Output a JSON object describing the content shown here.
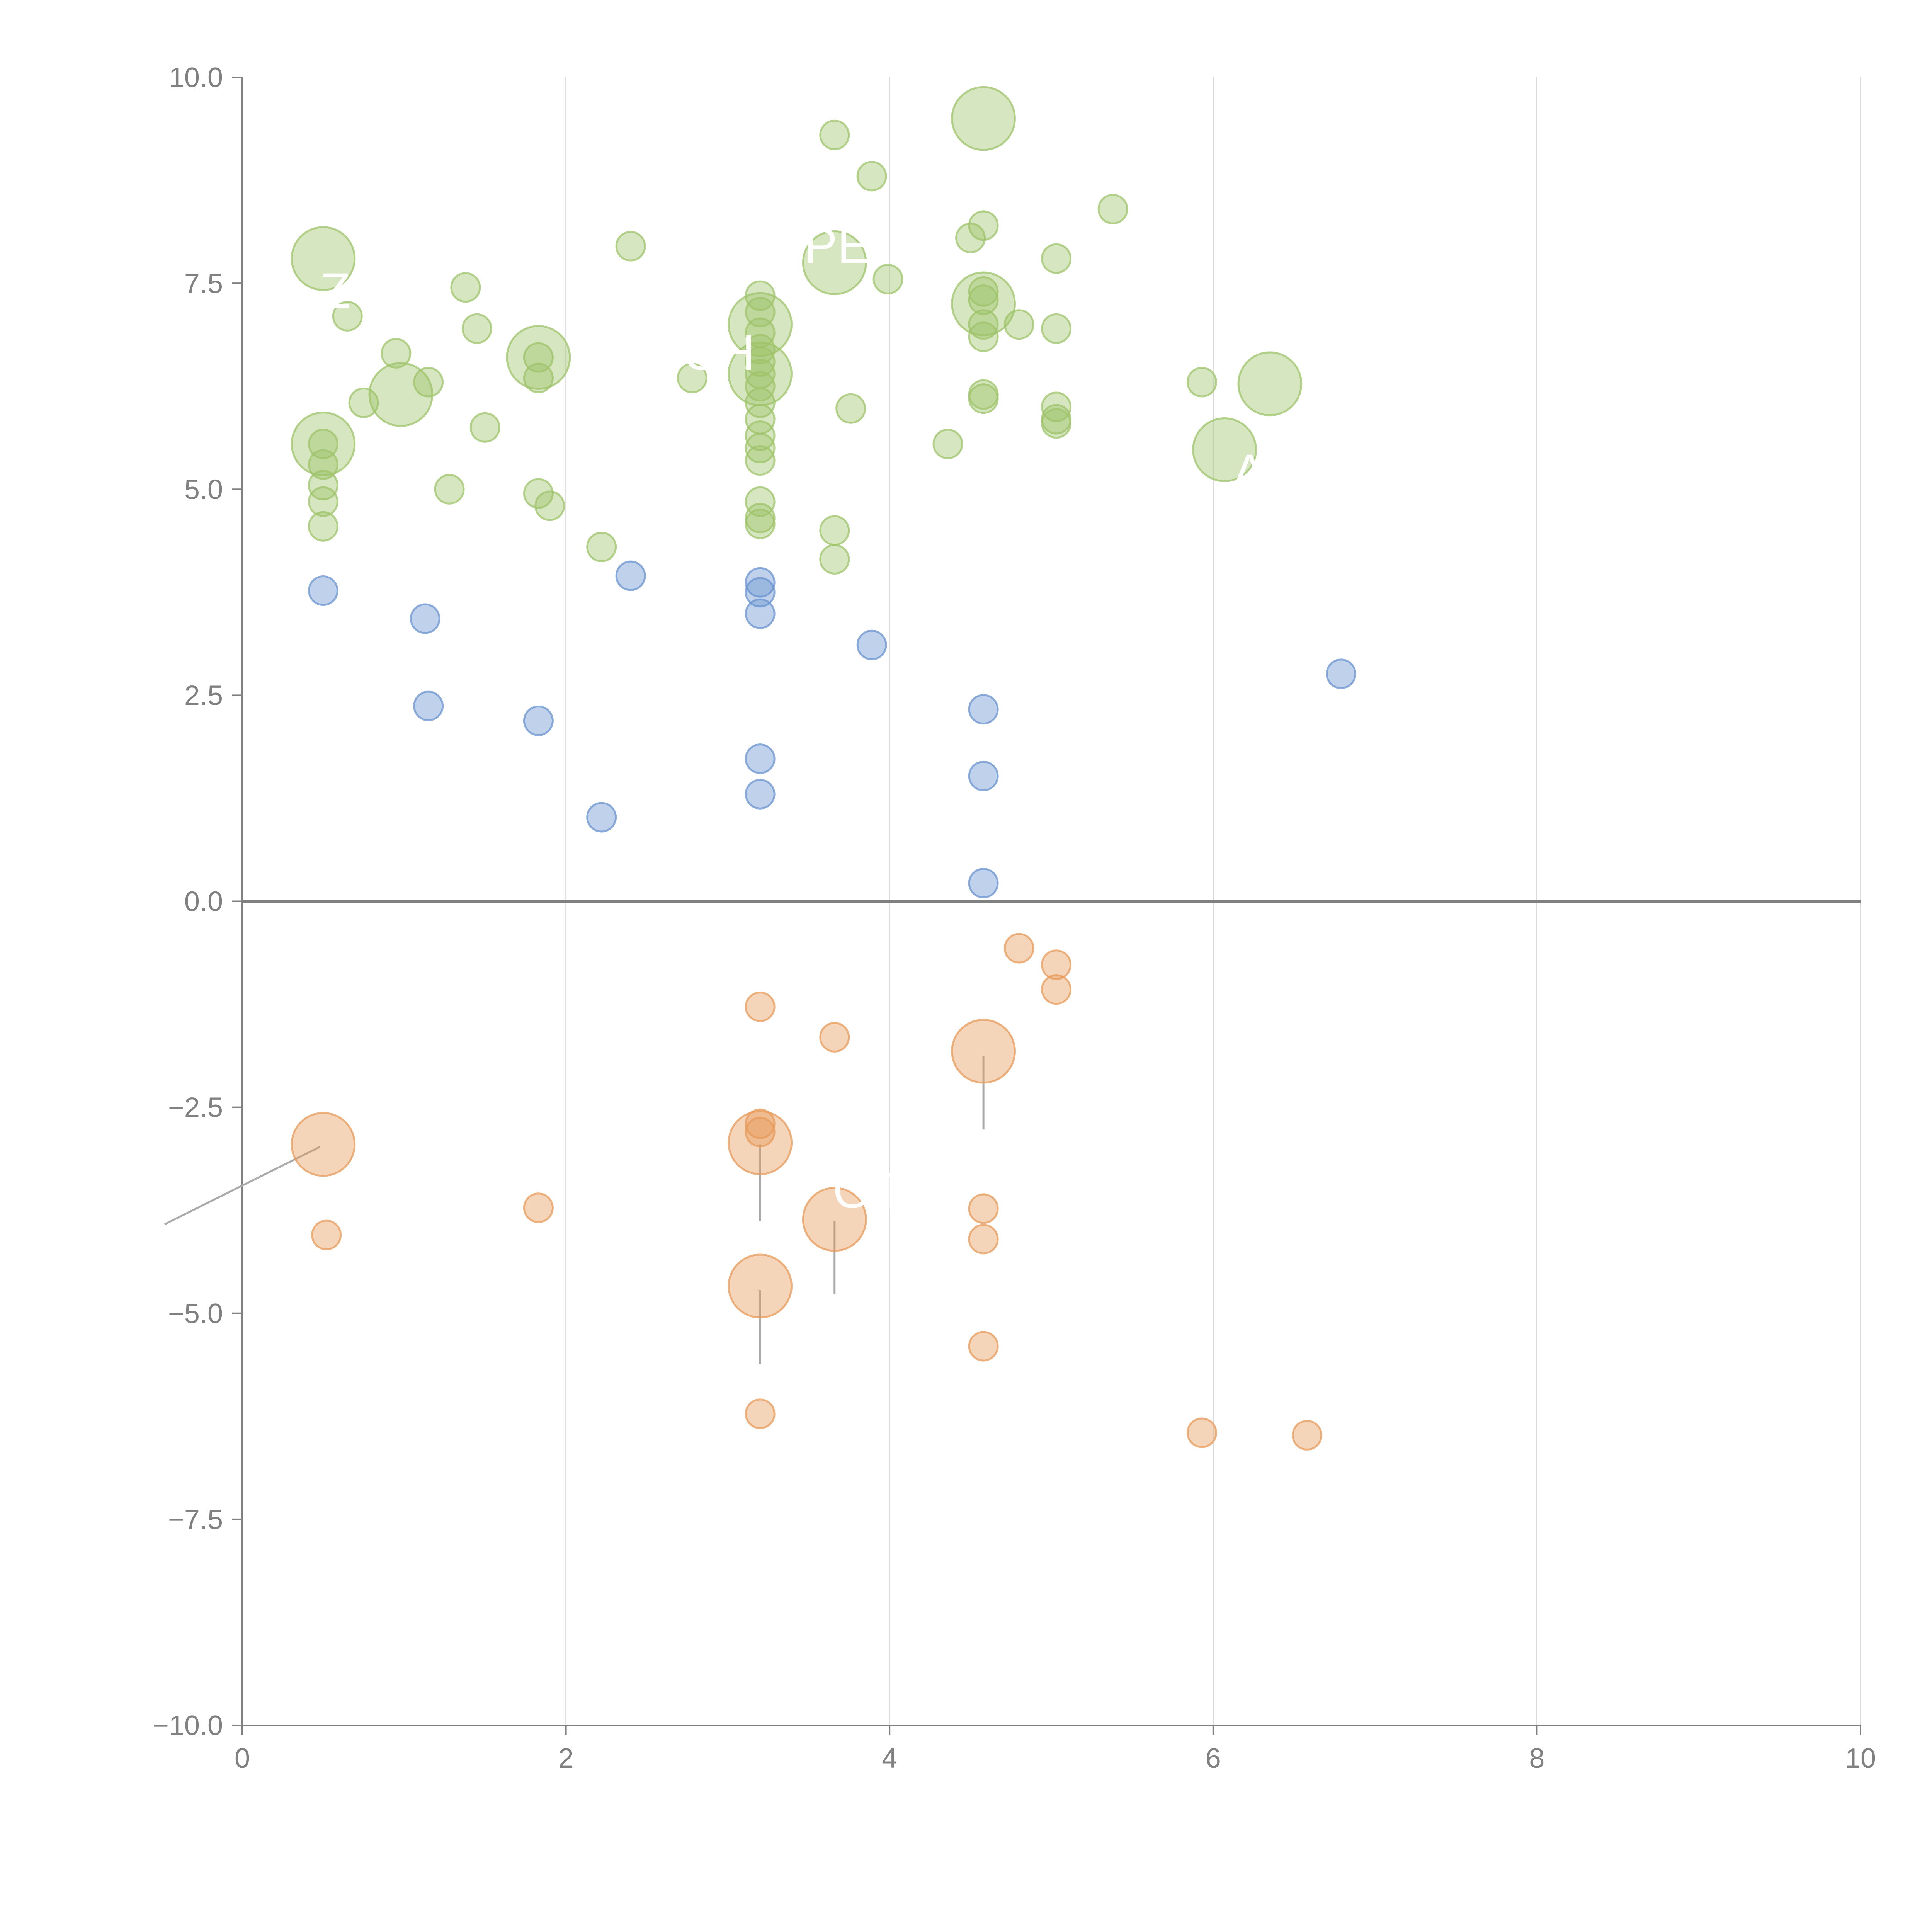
{
  "chart_data": {
    "type": "scatter",
    "variant": "bubble",
    "title": "",
    "xlabel": "",
    "ylabel": "",
    "xlim": [
      0,
      10
    ],
    "ylim": [
      -10,
      10
    ],
    "grid": {
      "vertical": true,
      "horizontal": false
    },
    "zero_line": true,
    "x_ticks": [
      "0",
      "2",
      "4",
      "6",
      "8",
      "10"
    ],
    "y_ticks": [
      "10.0",
      "7.5",
      "5.0",
      "2.5",
      "0.0",
      "−2.5",
      "−5.0",
      "−7.5",
      "−10.0"
    ],
    "colors": {
      "green": "#9dc36a",
      "blue": "#6a93cf",
      "orange": "#e79a5a",
      "grid": "#dcdcdc",
      "axis": "#808080",
      "label": "#ffffff"
    },
    "series": [
      {
        "name": "green",
        "color": "#9dc36a",
        "points": [
          {
            "x": 0.5,
            "y": 7.8,
            "r": 2.2
          },
          {
            "x": 0.65,
            "y": 7.1,
            "r": 1
          },
          {
            "x": 0.5,
            "y": 5.55,
            "r": 2.2
          },
          {
            "x": 0.5,
            "y": 5.55,
            "r": 1
          },
          {
            "x": 0.5,
            "y": 5.3,
            "r": 1
          },
          {
            "x": 0.5,
            "y": 5.05,
            "r": 1
          },
          {
            "x": 0.5,
            "y": 4.85,
            "r": 1
          },
          {
            "x": 0.5,
            "y": 4.55,
            "r": 1
          },
          {
            "x": 0.75,
            "y": 6.05,
            "r": 1
          },
          {
            "x": 0.95,
            "y": 6.65,
            "r": 1
          },
          {
            "x": 0.98,
            "y": 6.15,
            "r": 2.2
          },
          {
            "x": 1.15,
            "y": 6.3,
            "r": 1
          },
          {
            "x": 1.38,
            "y": 7.45,
            "r": 1
          },
          {
            "x": 1.45,
            "y": 6.95,
            "r": 1
          },
          {
            "x": 1.28,
            "y": 5.0,
            "r": 1
          },
          {
            "x": 1.5,
            "y": 5.75,
            "r": 1
          },
          {
            "x": 1.83,
            "y": 6.6,
            "r": 2.2
          },
          {
            "x": 1.83,
            "y": 6.6,
            "r": 1
          },
          {
            "x": 1.83,
            "y": 6.35,
            "r": 1
          },
          {
            "x": 1.83,
            "y": 4.95,
            "r": 1
          },
          {
            "x": 1.9,
            "y": 4.8,
            "r": 1
          },
          {
            "x": 2.22,
            "y": 4.3,
            "r": 1
          },
          {
            "x": 2.4,
            "y": 7.95,
            "r": 1
          },
          {
            "x": 2.78,
            "y": 6.35,
            "r": 1
          },
          {
            "x": 3.2,
            "y": 7.0,
            "r": 2.2
          },
          {
            "x": 3.2,
            "y": 6.4,
            "r": 2.2
          },
          {
            "x": 3.2,
            "y": 7.35,
            "r": 1
          },
          {
            "x": 3.2,
            "y": 7.15,
            "r": 1
          },
          {
            "x": 3.2,
            "y": 6.9,
            "r": 1
          },
          {
            "x": 3.2,
            "y": 6.7,
            "r": 1
          },
          {
            "x": 3.2,
            "y": 6.55,
            "r": 1
          },
          {
            "x": 3.2,
            "y": 6.4,
            "r": 1
          },
          {
            "x": 3.2,
            "y": 6.25,
            "r": 1
          },
          {
            "x": 3.2,
            "y": 6.05,
            "r": 1
          },
          {
            "x": 3.2,
            "y": 5.85,
            "r": 1
          },
          {
            "x": 3.2,
            "y": 5.65,
            "r": 1
          },
          {
            "x": 3.2,
            "y": 5.5,
            "r": 1
          },
          {
            "x": 3.2,
            "y": 5.35,
            "r": 1
          },
          {
            "x": 3.2,
            "y": 4.85,
            "r": 1
          },
          {
            "x": 3.2,
            "y": 4.65,
            "r": 1
          },
          {
            "x": 3.2,
            "y": 4.58,
            "r": 1
          },
          {
            "x": 3.66,
            "y": 7.75,
            "r": 2.2
          },
          {
            "x": 3.66,
            "y": 9.3,
            "r": 1
          },
          {
            "x": 3.66,
            "y": 4.5,
            "r": 1
          },
          {
            "x": 3.66,
            "y": 4.15,
            "r": 1
          },
          {
            "x": 3.76,
            "y": 5.98,
            "r": 1
          },
          {
            "x": 3.89,
            "y": 8.8,
            "r": 1
          },
          {
            "x": 3.99,
            "y": 7.55,
            "r": 1
          },
          {
            "x": 4.36,
            "y": 5.55,
            "r": 1
          },
          {
            "x": 4.5,
            "y": 8.05,
            "r": 1
          },
          {
            "x": 4.58,
            "y": 9.5,
            "r": 2.2
          },
          {
            "x": 4.58,
            "y": 7.25,
            "r": 2.2
          },
          {
            "x": 4.58,
            "y": 8.2,
            "r": 1
          },
          {
            "x": 4.58,
            "y": 7.4,
            "r": 1
          },
          {
            "x": 4.58,
            "y": 7.3,
            "r": 1
          },
          {
            "x": 4.58,
            "y": 7.0,
            "r": 1
          },
          {
            "x": 4.58,
            "y": 6.85,
            "r": 1
          },
          {
            "x": 4.58,
            "y": 6.15,
            "r": 1
          },
          {
            "x": 4.58,
            "y": 6.1,
            "r": 1
          },
          {
            "x": 4.8,
            "y": 7.0,
            "r": 1
          },
          {
            "x": 5.03,
            "y": 7.8,
            "r": 1
          },
          {
            "x": 5.03,
            "y": 6.95,
            "r": 1
          },
          {
            "x": 5.03,
            "y": 6.0,
            "r": 1
          },
          {
            "x": 5.03,
            "y": 5.85,
            "r": 1
          },
          {
            "x": 5.03,
            "y": 5.8,
            "r": 1
          },
          {
            "x": 5.38,
            "y": 8.4,
            "r": 1
          },
          {
            "x": 5.93,
            "y": 6.3,
            "r": 1
          },
          {
            "x": 6.07,
            "y": 5.48,
            "r": 2.2
          },
          {
            "x": 6.35,
            "y": 6.28,
            "r": 2.2
          }
        ]
      },
      {
        "name": "blue",
        "color": "#6a93cf",
        "points": [
          {
            "x": 0.5,
            "y": 3.77,
            "r": 1
          },
          {
            "x": 1.13,
            "y": 3.43,
            "r": 1
          },
          {
            "x": 1.15,
            "y": 2.37,
            "r": 1
          },
          {
            "x": 1.83,
            "y": 2.19,
            "r": 1
          },
          {
            "x": 2.22,
            "y": 1.02,
            "r": 1
          },
          {
            "x": 2.4,
            "y": 3.95,
            "r": 1
          },
          {
            "x": 3.2,
            "y": 3.87,
            "r": 1
          },
          {
            "x": 3.2,
            "y": 3.75,
            "r": 1
          },
          {
            "x": 3.2,
            "y": 3.49,
            "r": 1
          },
          {
            "x": 3.2,
            "y": 1.73,
            "r": 1
          },
          {
            "x": 3.2,
            "y": 1.3,
            "r": 1
          },
          {
            "x": 3.89,
            "y": 3.11,
            "r": 1
          },
          {
            "x": 4.58,
            "y": 2.33,
            "r": 1
          },
          {
            "x": 4.58,
            "y": 1.52,
            "r": 1
          },
          {
            "x": 4.58,
            "y": 0.22,
            "r": 1
          },
          {
            "x": 6.79,
            "y": 2.76,
            "r": 1
          }
        ]
      },
      {
        "name": "orange",
        "color": "#e79a5a",
        "points": [
          {
            "x": 0.5,
            "y": -2.95,
            "r": 2.2
          },
          {
            "x": 0.52,
            "y": -4.05,
            "r": 1
          },
          {
            "x": 1.83,
            "y": -3.72,
            "r": 1
          },
          {
            "x": 3.2,
            "y": -1.28,
            "r": 1
          },
          {
            "x": 3.2,
            "y": -2.93,
            "r": 2.2
          },
          {
            "x": 3.2,
            "y": -2.7,
            "r": 1
          },
          {
            "x": 3.2,
            "y": -2.8,
            "r": 1
          },
          {
            "x": 3.2,
            "y": -4.67,
            "r": 2.2
          },
          {
            "x": 3.2,
            "y": -6.22,
            "r": 1
          },
          {
            "x": 3.66,
            "y": -1.65,
            "r": 1
          },
          {
            "x": 3.66,
            "y": -3.86,
            "r": 2.2
          },
          {
            "x": 4.58,
            "y": -1.82,
            "r": 2.2
          },
          {
            "x": 4.58,
            "y": -3.73,
            "r": 1
          },
          {
            "x": 4.58,
            "y": -4.1,
            "r": 1
          },
          {
            "x": 4.58,
            "y": -5.4,
            "r": 1
          },
          {
            "x": 4.8,
            "y": -0.57,
            "r": 1
          },
          {
            "x": 5.03,
            "y": -0.77,
            "r": 1
          },
          {
            "x": 5.03,
            "y": -1.07,
            "r": 1
          },
          {
            "x": 5.93,
            "y": -6.45,
            "r": 1
          },
          {
            "x": 6.58,
            "y": -6.48,
            "r": 1
          }
        ]
      }
    ],
    "labels": [
      {
        "text": "Z",
        "x": 0.48,
        "y": 7.2,
        "line_from": [
          0.5,
          7.85
        ],
        "line_to": [
          0.58,
          8.35
        ],
        "line_color": "#ffffff"
      },
      {
        "text": "CH",
        "x": 2.72,
        "y": 6.45,
        "line_from": [
          1.83,
          6.75
        ],
        "line_to": [
          1.75,
          7.0
        ],
        "line_color": "#ffffff"
      },
      {
        "text": "PE",
        "x": 3.47,
        "y": 7.75,
        "line_from": [
          3.25,
          7.05
        ],
        "line_to": [
          3.33,
          7.25
        ],
        "line_color": "#ffffff"
      },
      {
        "text": "A",
        "x": 6.12,
        "y": 5.0,
        "line_from": [
          6.1,
          5.4
        ],
        "line_to": [
          6.15,
          5.3
        ],
        "line_color": "#ffffff"
      },
      {
        "text": "OT",
        "x": 3.65,
        "y": -3.72,
        "line_from": [
          3.66,
          -3.88
        ],
        "line_to": [
          3.66,
          -4.77
        ],
        "line_color": "#aaaaaa"
      }
    ]
  }
}
